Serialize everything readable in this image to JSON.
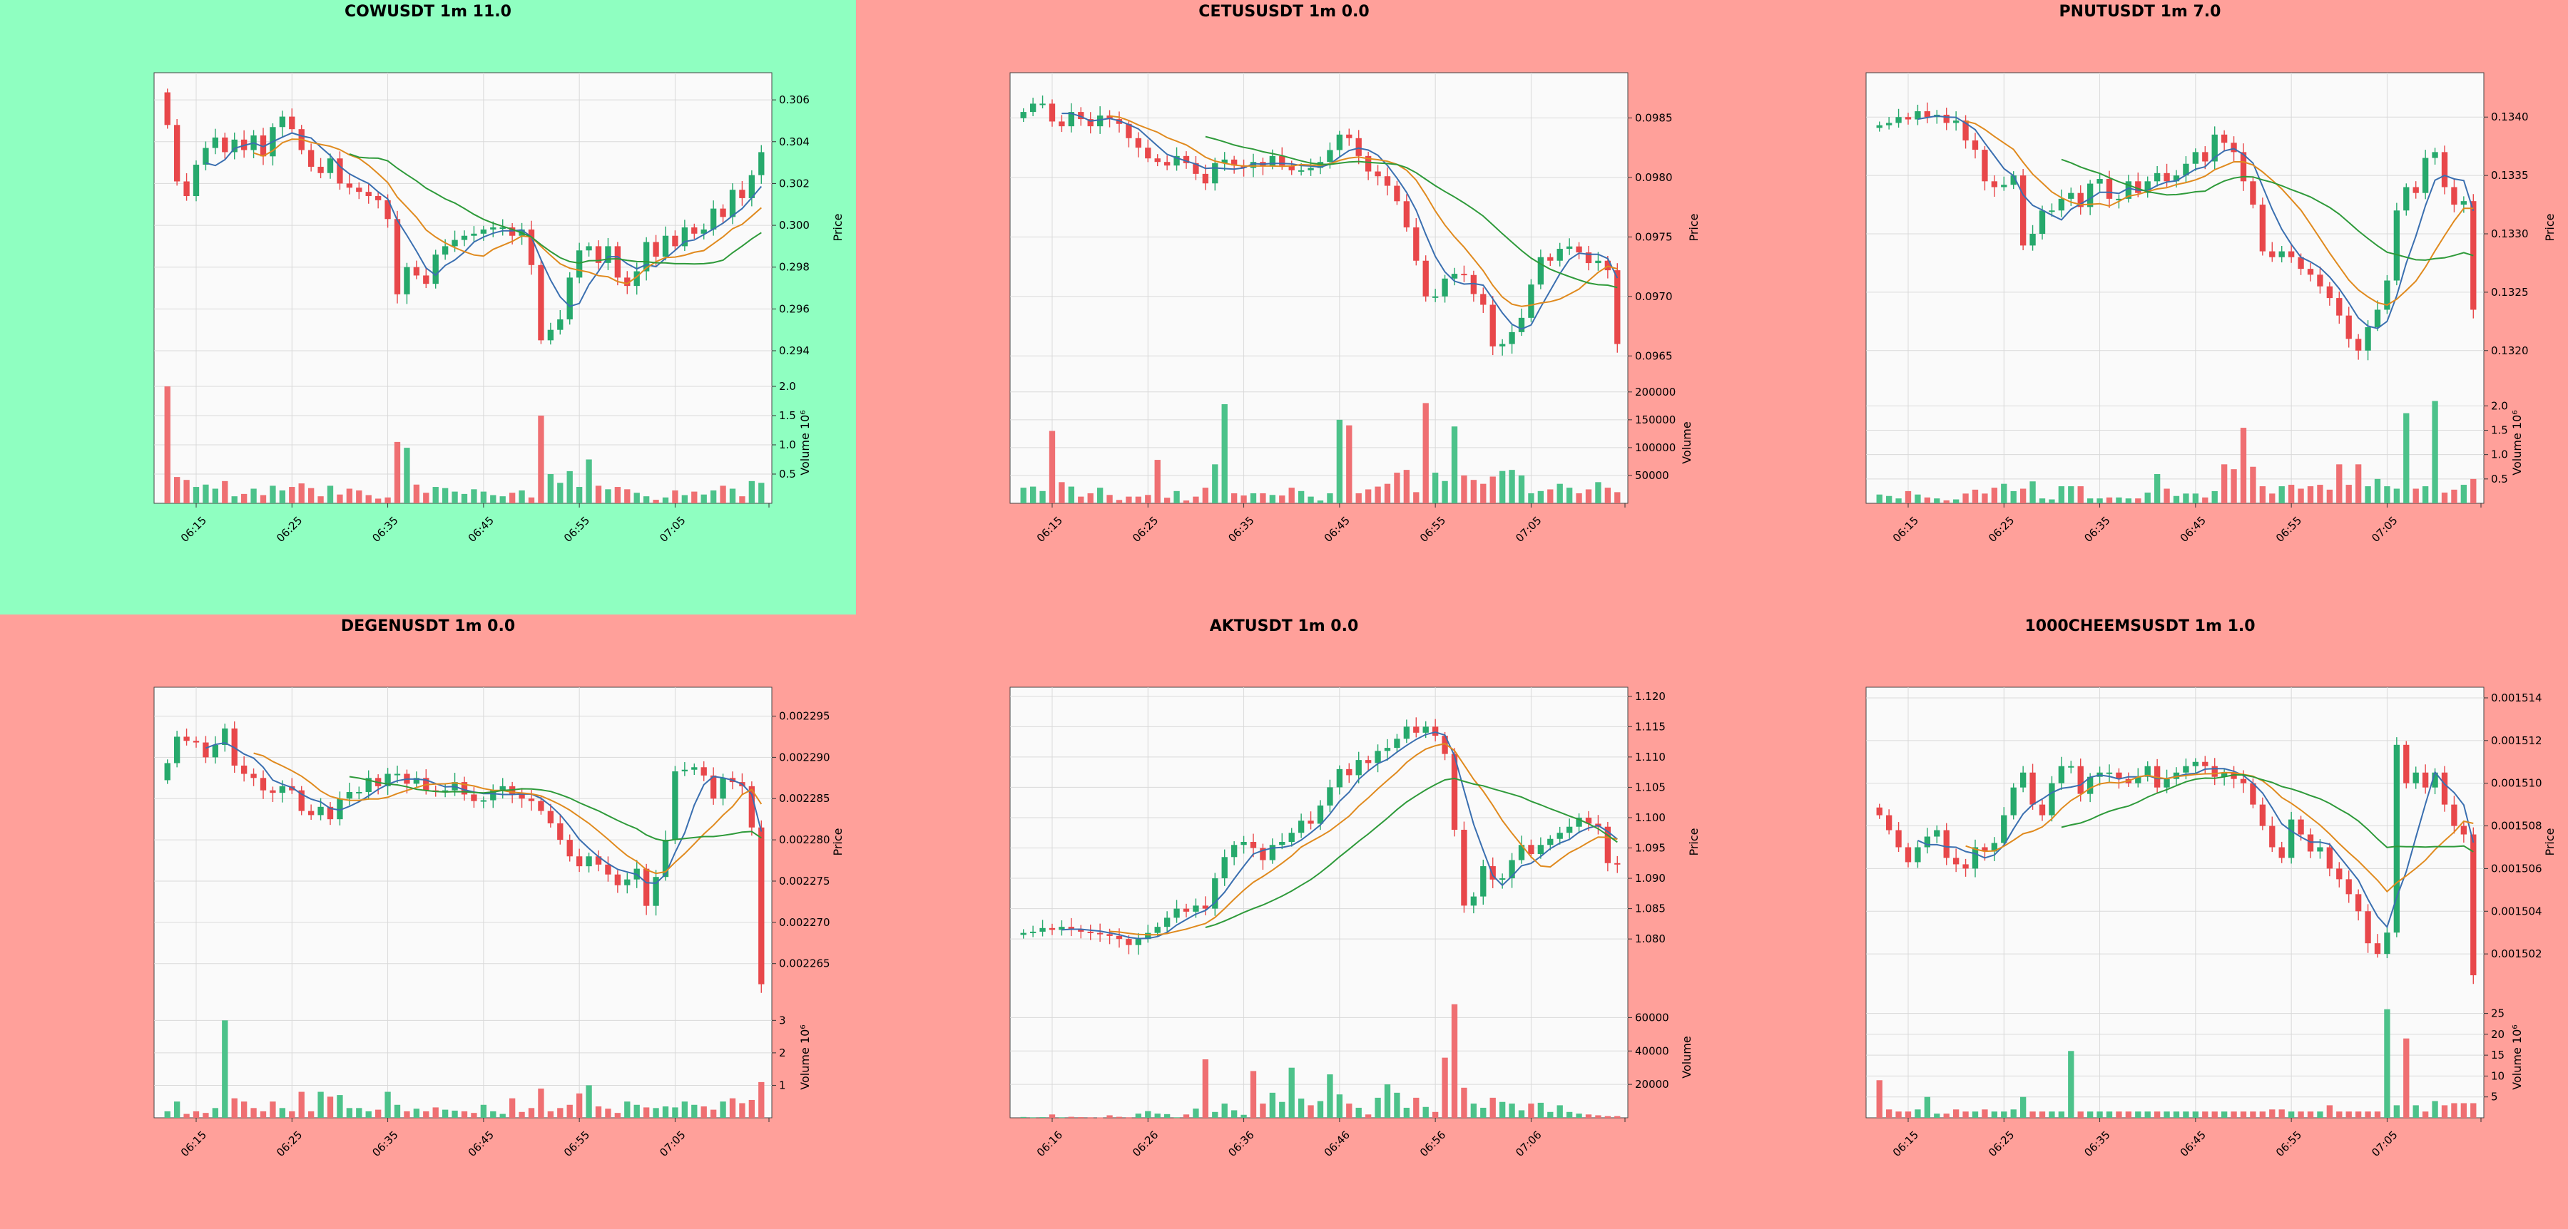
{
  "colors": {
    "panel_good": "#8fffc1",
    "panel_bad": "#ffa09a",
    "plot_bg": "#fafafa",
    "grid": "#d9d9d9",
    "up": "#26a96c",
    "down": "#e8474a",
    "up_vol": "#4cc28a",
    "down_vol": "#ef6f72",
    "ma_fast": "#3a6fb0",
    "ma_mid": "#e08a1e",
    "ma_slow": "#2e9a3a"
  },
  "x_tick_labels": [
    "06:15",
    "06:25",
    "06:35",
    "06:45",
    "06:55",
    "07:05"
  ],
  "x_tick_labels_aktusdt": [
    "06:16",
    "06:26",
    "06:36",
    "06:46",
    "06:56",
    "07:06"
  ],
  "chart_data": [
    {
      "type": "candlestick",
      "title": "COWUSDT 1m 11.0",
      "status": "good",
      "ylabel": "Price",
      "vol_label": "Volume  10⁶",
      "ylim": [
        0.2925,
        0.3073
      ],
      "yticks": [
        "0.306",
        "0.304",
        "0.302",
        "0.300",
        "0.298",
        "0.296",
        "0.294"
      ],
      "ytick_values": [
        0.306,
        0.304,
        0.302,
        0.3,
        0.298,
        0.296,
        0.294
      ],
      "vol_ylim": [
        0,
        2.0
      ],
      "vol_ticks": [
        "2.0",
        "1.5",
        "1.0",
        "0.5"
      ],
      "vol_tick_values": [
        2.0,
        1.5,
        1.0,
        0.5
      ],
      "close": [
        0.3048,
        0.3021,
        0.3014,
        0.3029,
        0.3037,
        0.3042,
        0.3035,
        0.3041,
        0.3036,
        0.3043,
        0.3033,
        0.3047,
        0.3052,
        0.3046,
        0.3036,
        0.3028,
        0.3025,
        0.3032,
        0.302,
        0.3018,
        0.3016,
        0.3014,
        0.3012,
        0.3003,
        0.2967,
        0.298,
        0.2976,
        0.2972,
        0.2986,
        0.299,
        0.2993,
        0.2995,
        0.2996,
        0.2998,
        0.2999,
        0.2999,
        0.2995,
        0.2998,
        0.2981,
        0.2945,
        0.295,
        0.2955,
        0.2975,
        0.2988,
        0.299,
        0.2982,
        0.299,
        0.2975,
        0.2971,
        0.2978,
        0.2992,
        0.2985,
        0.2995,
        0.299,
        0.2999,
        0.2996,
        0.2998,
        0.3008,
        0.3004,
        0.3017,
        0.3013,
        0.3024,
        0.3035
      ],
      "volume": [
        2.0,
        0.45,
        0.4,
        0.28,
        0.32,
        0.25,
        0.38,
        0.12,
        0.16,
        0.25,
        0.14,
        0.3,
        0.22,
        0.28,
        0.34,
        0.26,
        0.12,
        0.3,
        0.15,
        0.25,
        0.22,
        0.14,
        0.08,
        0.1,
        1.05,
        0.95,
        0.32,
        0.18,
        0.28,
        0.26,
        0.2,
        0.16,
        0.24,
        0.2,
        0.14,
        0.12,
        0.18,
        0.22,
        0.1,
        1.5,
        0.5,
        0.35,
        0.55,
        0.28,
        0.75,
        0.3,
        0.24,
        0.28,
        0.24,
        0.18,
        0.12,
        0.06,
        0.1,
        0.22,
        0.14,
        0.2,
        0.15,
        0.22,
        0.3,
        0.25,
        0.12,
        0.38,
        0.35
      ]
    },
    {
      "type": "candlestick",
      "title": "CETUSUSDT 1m 0.0",
      "status": "bad",
      "ylabel": "Price",
      "vol_label": "Volume",
      "ylim": [
        0.09628,
        0.09888
      ],
      "yticks": [
        "0.0985",
        "0.0980",
        "0.0975",
        "0.0970",
        "0.0965"
      ],
      "ytick_values": [
        0.0985,
        0.098,
        0.0975,
        0.097,
        0.0965
      ],
      "vol_ylim": [
        0,
        210000
      ],
      "vol_ticks": [
        "200000",
        "150000",
        "100000",
        "50000"
      ],
      "vol_tick_values": [
        200000,
        150000,
        100000,
        50000
      ],
      "close": [
        0.09855,
        0.09862,
        0.09862,
        0.09847,
        0.09843,
        0.09855,
        0.09849,
        0.09843,
        0.09852,
        0.09849,
        0.09845,
        0.09833,
        0.09825,
        0.09816,
        0.09813,
        0.0981,
        0.09818,
        0.09812,
        0.09803,
        0.09795,
        0.09812,
        0.09815,
        0.0981,
        0.09808,
        0.09813,
        0.0981,
        0.09818,
        0.0981,
        0.09806,
        0.09806,
        0.09808,
        0.09813,
        0.09823,
        0.09836,
        0.09833,
        0.09818,
        0.09805,
        0.09801,
        0.09793,
        0.0978,
        0.09758,
        0.0973,
        0.097,
        0.097,
        0.09715,
        0.09719,
        0.09718,
        0.09702,
        0.09693,
        0.09658,
        0.0966,
        0.0967,
        0.09682,
        0.0971,
        0.09733,
        0.0973,
        0.0974,
        0.09742,
        0.09737,
        0.09728,
        0.0973,
        0.09722,
        0.0966
      ],
      "volume": [
        28000,
        30000,
        22000,
        130000,
        38000,
        30000,
        12000,
        18000,
        28000,
        15000,
        6000,
        12000,
        12000,
        15000,
        78000,
        10000,
        22000,
        5000,
        12000,
        28000,
        70000,
        178000,
        18000,
        14000,
        18000,
        18000,
        15000,
        14000,
        28000,
        22000,
        12000,
        5000,
        18000,
        150000,
        140000,
        18000,
        25000,
        30000,
        35000,
        55000,
        60000,
        20000,
        180000,
        55000,
        40000,
        138000,
        50000,
        42000,
        35000,
        48000,
        58000,
        60000,
        50000,
        18000,
        22000,
        25000,
        35000,
        28000,
        18000,
        25000,
        38000,
        28000,
        20000
      ]
    },
    {
      "type": "candlestick",
      "title": "PNUTUSDT 1m 7.0",
      "status": "bad",
      "ylabel": "Price",
      "vol_label": "Volume  10⁶",
      "ylim": [
        0.13173,
        0.13438
      ],
      "yticks": [
        "0.1340",
        "0.1335",
        "0.1330",
        "0.1325",
        "0.1320"
      ],
      "ytick_values": [
        0.134,
        0.1335,
        0.133,
        0.1325,
        0.132
      ],
      "vol_ylim": [
        0,
        2.4
      ],
      "vol_ticks": [
        "2.0",
        "1.5",
        "1.0",
        "0.5"
      ],
      "vol_tick_values": [
        2.0,
        1.5,
        1.0,
        0.5
      ],
      "close": [
        0.13393,
        0.13395,
        0.134,
        0.13398,
        0.13405,
        0.134,
        0.13402,
        0.13395,
        0.13397,
        0.1338,
        0.13372,
        0.13345,
        0.1334,
        0.13342,
        0.1335,
        0.1329,
        0.133,
        0.1332,
        0.1332,
        0.1333,
        0.13335,
        0.13323,
        0.13343,
        0.13347,
        0.1333,
        0.1333,
        0.13345,
        0.13335,
        0.13345,
        0.13352,
        0.13345,
        0.1335,
        0.1336,
        0.1337,
        0.13362,
        0.13385,
        0.13378,
        0.1337,
        0.13345,
        0.13325,
        0.13285,
        0.1328,
        0.13285,
        0.1328,
        0.1327,
        0.13265,
        0.13255,
        0.13245,
        0.1323,
        0.1321,
        0.132,
        0.1322,
        0.13235,
        0.1326,
        0.1332,
        0.1334,
        0.13335,
        0.13365,
        0.1337,
        0.1334,
        0.13325,
        0.13328,
        0.13235
      ],
      "volume": [
        0.18,
        0.15,
        0.1,
        0.25,
        0.18,
        0.12,
        0.1,
        0.06,
        0.08,
        0.2,
        0.28,
        0.2,
        0.32,
        0.4,
        0.25,
        0.3,
        0.45,
        0.1,
        0.08,
        0.35,
        0.35,
        0.35,
        0.1,
        0.1,
        0.12,
        0.12,
        0.1,
        0.1,
        0.22,
        0.6,
        0.3,
        0.15,
        0.2,
        0.2,
        0.12,
        0.25,
        0.8,
        0.7,
        1.55,
        0.75,
        0.35,
        0.2,
        0.35,
        0.38,
        0.3,
        0.35,
        0.38,
        0.28,
        0.8,
        0.38,
        0.8,
        0.35,
        0.5,
        0.35,
        0.3,
        1.85,
        0.3,
        0.35,
        2.1,
        0.22,
        0.28,
        0.38,
        0.5
      ]
    },
    {
      "type": "candlestick",
      "title": "DEGENUSDT 1m 0.0",
      "status": "bad",
      "ylabel": "Price",
      "vol_label": "Volume  10⁶",
      "ylim": [
        0.002261,
        0.0022985
      ],
      "yticks": [
        "0.002295",
        "0.002290",
        "0.002285",
        "0.002280",
        "0.002275",
        "0.002270",
        "0.002265"
      ],
      "ytick_values": [
        0.002295,
        0.00229,
        0.002285,
        0.00228,
        0.002275,
        0.00227,
        0.002265
      ],
      "vol_ylim": [
        0,
        3.6
      ],
      "vol_ticks": [
        "3",
        "2",
        "1"
      ],
      "vol_tick_values": [
        3,
        2,
        1
      ],
      "close": [
        0.0022893,
        0.0022925,
        0.002292,
        0.0022918,
        0.00229,
        0.0022915,
        0.0022935,
        0.002289,
        0.002288,
        0.0022875,
        0.002286,
        0.0022857,
        0.0022865,
        0.002286,
        0.0022835,
        0.002283,
        0.002284,
        0.0022825,
        0.002285,
        0.0022858,
        0.0022858,
        0.0022875,
        0.0022865,
        0.002288,
        0.002288,
        0.0022868,
        0.0022875,
        0.002286,
        0.0022858,
        0.002286,
        0.002287,
        0.0022855,
        0.0022847,
        0.0022848,
        0.002286,
        0.0022865,
        0.0022855,
        0.002285,
        0.0022847,
        0.0022835,
        0.002282,
        0.00228,
        0.002278,
        0.0022768,
        0.002278,
        0.002277,
        0.0022758,
        0.0022745,
        0.0022752,
        0.0022765,
        0.002272,
        0.0022755,
        0.00228,
        0.0022883,
        0.0022885,
        0.0022888,
        0.0022878,
        0.002285,
        0.0022875,
        0.002287,
        0.0022865,
        0.0022815,
        0.0022625
      ],
      "volume": [
        0.2,
        0.5,
        0.12,
        0.2,
        0.15,
        0.3,
        3.0,
        0.6,
        0.5,
        0.3,
        0.2,
        0.5,
        0.3,
        0.2,
        0.8,
        0.2,
        0.8,
        0.65,
        0.7,
        0.3,
        0.3,
        0.2,
        0.25,
        0.8,
        0.4,
        0.2,
        0.28,
        0.2,
        0.32,
        0.25,
        0.22,
        0.2,
        0.15,
        0.4,
        0.2,
        0.12,
        0.6,
        0.18,
        0.3,
        0.9,
        0.2,
        0.3,
        0.4,
        0.75,
        1.0,
        0.35,
        0.28,
        0.15,
        0.5,
        0.4,
        0.32,
        0.3,
        0.35,
        0.32,
        0.5,
        0.4,
        0.35,
        0.25,
        0.5,
        0.6,
        0.45,
        0.55,
        1.1
      ]
    },
    {
      "type": "candlestick",
      "title": "AKTUSDT 1m 0.0",
      "status": "bad",
      "ylabel": "Price",
      "vol_label": "Volume",
      "ylim": [
        1.0705,
        1.1215
      ],
      "yticks": [
        "1.120",
        "1.115",
        "1.110",
        "1.105",
        "1.100",
        "1.095",
        "1.090",
        "1.085",
        "1.080"
      ],
      "ytick_values": [
        1.12,
        1.115,
        1.11,
        1.105,
        1.1,
        1.095,
        1.09,
        1.085,
        1.08
      ],
      "vol_ylim": [
        0,
        70000
      ],
      "vol_ticks": [
        "60000",
        "40000",
        "20000"
      ],
      "vol_tick_values": [
        60000,
        40000,
        20000
      ],
      "close": [
        1.081,
        1.0812,
        1.0818,
        1.0815,
        1.082,
        1.0815,
        1.0812,
        1.081,
        1.0808,
        1.0805,
        1.08,
        1.079,
        1.08,
        1.081,
        1.082,
        1.0835,
        1.085,
        1.0845,
        1.0855,
        1.085,
        1.09,
        1.0935,
        1.0955,
        1.096,
        1.095,
        1.093,
        1.0955,
        1.096,
        1.0975,
        1.0995,
        1.099,
        1.102,
        1.105,
        1.108,
        1.107,
        1.1095,
        1.109,
        1.111,
        1.1115,
        1.113,
        1.115,
        1.114,
        1.115,
        1.1135,
        1.1105,
        1.098,
        1.0855,
        1.087,
        1.092,
        1.0898,
        1.09,
        1.093,
        1.0955,
        1.094,
        1.0955,
        1.0965,
        1.0975,
        1.0985,
        1.1,
        1.099,
        1.0985,
        1.0925,
        1.0923
      ],
      "volume": [
        500,
        300,
        400,
        2000,
        300,
        600,
        400,
        300,
        200,
        1500,
        600,
        300,
        2500,
        4000,
        2500,
        2200,
        300,
        2000,
        5500,
        35000,
        3500,
        8500,
        4500,
        1800,
        28000,
        8500,
        15000,
        9500,
        30000,
        11500,
        7500,
        10000,
        26000,
        14000,
        8500,
        6000,
        2000,
        12000,
        20000,
        15000,
        6000,
        12000,
        6500,
        3500,
        36000,
        68000,
        18000,
        8500,
        6000,
        12000,
        9500,
        8500,
        4500,
        8500,
        9000,
        3500,
        7500,
        3500,
        2500,
        2000,
        1500,
        1000,
        1000
      ]
    },
    {
      "type": "candlestick",
      "title": "1000CHEEMSUSDT 1m 1.0",
      "status": "bad",
      "ylabel": "Price",
      "vol_label": "Volume  10⁶",
      "ylim": [
        0.0015,
        0.0015145
      ],
      "yticks": [
        "0.001514",
        "0.001512",
        "0.001510",
        "0.001508",
        "0.001506",
        "0.001504",
        "0.001502"
      ],
      "ytick_values": [
        0.001514,
        0.001512,
        0.00151,
        0.001508,
        0.001506,
        0.001504,
        0.001502
      ],
      "vol_ylim": [
        0,
        28
      ],
      "vol_ticks": [
        "25",
        "20",
        "15",
        "10",
        "5"
      ],
      "vol_tick_values": [
        25,
        20,
        15,
        10,
        5
      ],
      "close": [
        0.0015085,
        0.0015078,
        0.001507,
        0.0015063,
        0.001507,
        0.0015075,
        0.0015078,
        0.0015065,
        0.0015062,
        0.001506,
        0.001507,
        0.0015068,
        0.0015072,
        0.0015085,
        0.0015098,
        0.0015105,
        0.001509,
        0.0015085,
        0.00151,
        0.0015108,
        0.0015108,
        0.0015095,
        0.0015103,
        0.0015105,
        0.0015105,
        0.0015102,
        0.00151,
        0.0015103,
        0.0015108,
        0.0015098,
        0.0015102,
        0.0015105,
        0.0015108,
        0.001511,
        0.0015108,
        0.0015103,
        0.0015105,
        0.0015102,
        0.00151,
        0.001509,
        0.001508,
        0.001507,
        0.0015065,
        0.0015083,
        0.0015076,
        0.0015068,
        0.001507,
        0.001506,
        0.0015055,
        0.0015048,
        0.001504,
        0.0015025,
        0.001502,
        0.001503,
        0.0015118,
        0.00151,
        0.0015105,
        0.0015098,
        0.0015105,
        0.001509,
        0.001508,
        0.0015076,
        0.001501
      ],
      "volume": [
        9,
        2,
        1.5,
        1.5,
        2,
        5,
        1,
        1,
        2,
        1.5,
        1.5,
        2,
        1.5,
        1.5,
        2,
        5,
        1.5,
        1.5,
        1.5,
        1.5,
        16,
        1.5,
        1.5,
        1.5,
        1.5,
        1.5,
        1.5,
        1.5,
        1.5,
        1.5,
        1.5,
        1.5,
        1.5,
        1.5,
        1.5,
        1.5,
        1.5,
        1.5,
        1.5,
        1.5,
        1.5,
        2,
        2,
        1.5,
        1.5,
        1.5,
        1.5,
        3,
        1.5,
        1.5,
        1.5,
        1.5,
        1.5,
        26,
        3,
        19,
        3,
        1.5,
        4,
        3,
        3.5,
        3.5,
        3.5
      ]
    }
  ]
}
